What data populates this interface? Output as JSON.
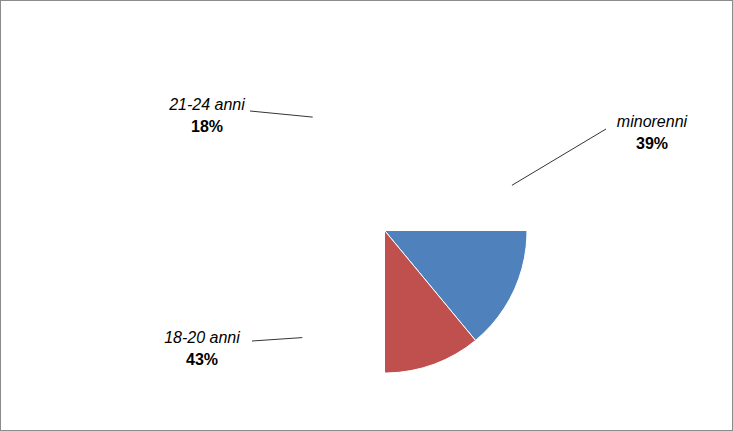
{
  "chart_data": {
    "type": "pie",
    "categories": [
      "minorenni",
      "18-20 anni",
      "21-24 anni"
    ],
    "values": [
      39,
      43,
      18
    ],
    "value_labels": [
      "39%",
      "43%",
      "18%"
    ],
    "colors": [
      "#4f81bd",
      "#c0504d",
      "#9bbb59"
    ],
    "data_labels": true
  }
}
